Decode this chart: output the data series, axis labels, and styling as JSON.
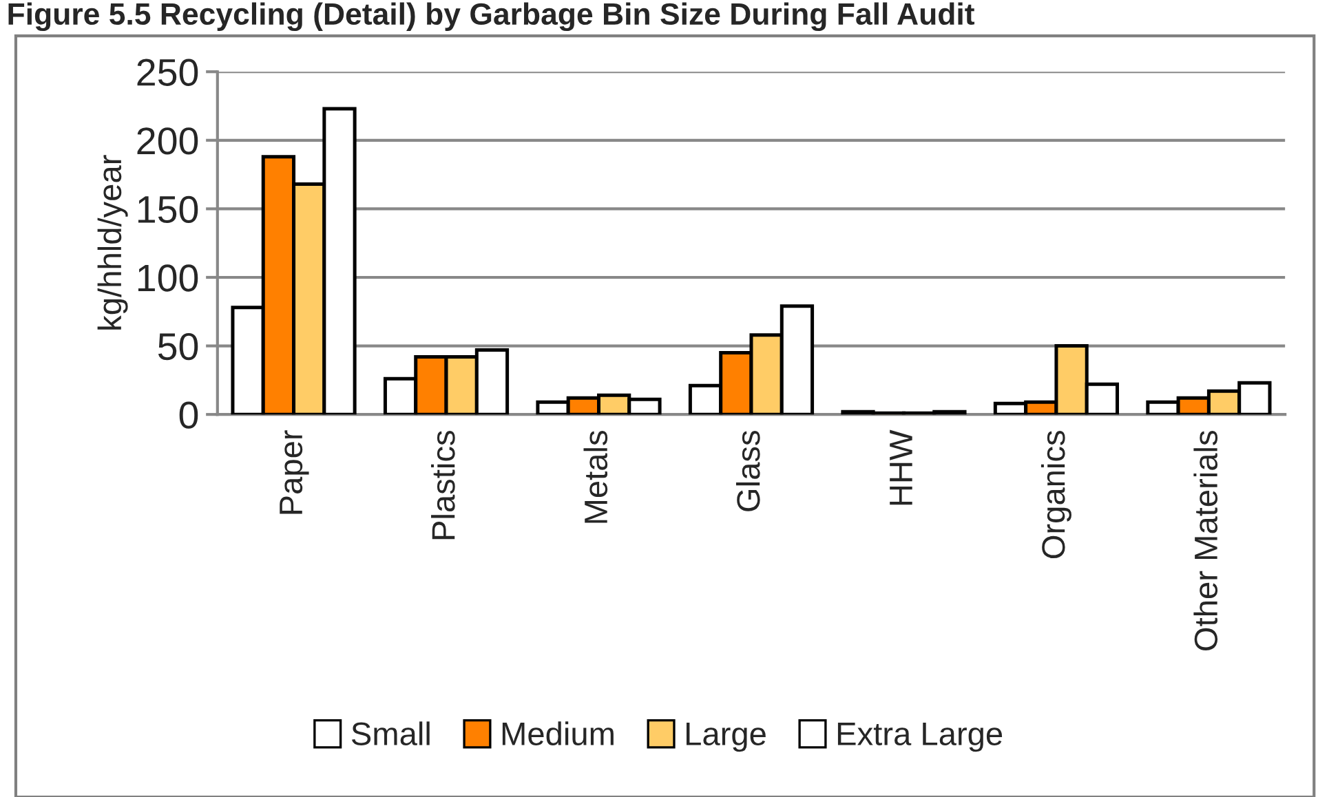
{
  "chart_data": {
    "type": "bar",
    "title": "Figure 5.5 Recycling (Detail) by Garbage Bin Size During Fall Audit",
    "ylabel": "kg/hhld/year",
    "categories": [
      "Paper",
      "Plastics",
      "Metals",
      "Glass",
      "HHW",
      "Organics",
      "Other Materials"
    ],
    "series": [
      {
        "name": "Small",
        "color": "#ffffff",
        "values": [
          78,
          26,
          9,
          21,
          2,
          8,
          9
        ]
      },
      {
        "name": "Medium",
        "color": "#ff8000",
        "values": [
          188,
          42,
          12,
          45,
          1,
          9,
          12
        ]
      },
      {
        "name": "Large",
        "color": "#ffcc66",
        "values": [
          168,
          42,
          14,
          58,
          1,
          50,
          17
        ]
      },
      {
        "name": "Extra Large",
        "color": "#ffffff",
        "values": [
          223,
          47,
          11,
          79,
          2,
          22,
          23
        ]
      }
    ],
    "ylim": [
      0,
      250
    ],
    "yticks": [
      0,
      50,
      100,
      150,
      200,
      250
    ],
    "grid": "y",
    "legend": "bottom"
  }
}
